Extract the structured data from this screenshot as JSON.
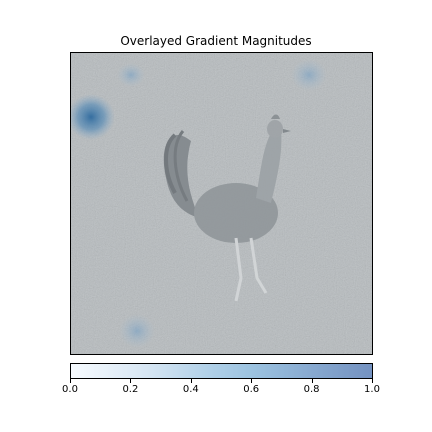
{
  "chart_data": {
    "type": "heatmap",
    "title": "Overlayed Gradient Magnitudes",
    "background_image": "grayscale photo of a rooster standing on gravel ground",
    "colormap": "Blues",
    "colorbar": {
      "range": [
        0.0,
        1.0
      ],
      "ticks": [
        0.0,
        0.2,
        0.4,
        0.6,
        0.8,
        1.0
      ],
      "tick_labels": [
        "0.0",
        "0.2",
        "0.4",
        "0.6",
        "0.8",
        "1.0"
      ],
      "colors": [
        "#f7fbff",
        "#d7e6f3",
        "#b2d1e8",
        "#9cc3e0",
        "#87a9d0",
        "#7492c1"
      ]
    },
    "hotspots": [
      {
        "location": "left edge, upper",
        "intensity": 0.9
      },
      {
        "location": "top-right",
        "intensity": 0.4
      },
      {
        "location": "top-center-left",
        "intensity": 0.3
      },
      {
        "location": "bottom-left",
        "intensity": 0.6
      }
    ],
    "axes_ticks": false
  }
}
